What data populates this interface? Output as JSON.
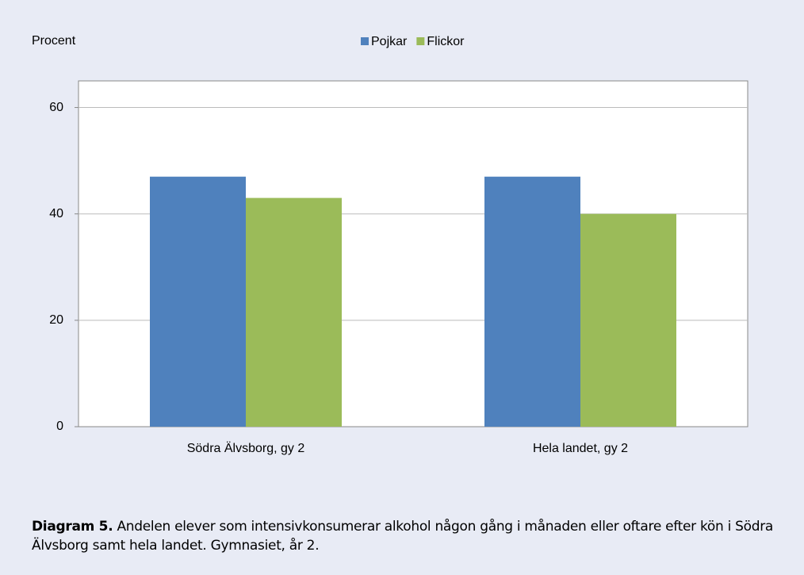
{
  "chart_data": {
    "type": "bar",
    "y_label": "Procent",
    "categories": [
      "Södra Älvsborg, gy 2",
      "Hela landet, gy 2"
    ],
    "series": [
      {
        "name": "Pojkar",
        "color": "#4f81bd",
        "values": [
          47,
          47
        ]
      },
      {
        "name": "Flickor",
        "color": "#9bbb59",
        "values": [
          43,
          40
        ]
      }
    ],
    "ylim": [
      0,
      65
    ],
    "yticks": [
      0,
      20,
      40,
      60
    ],
    "grid": true,
    "legend": "top",
    "caption": {
      "label": "Diagram 5.",
      "text": "Andelen elever som intensivkonsumerar alkohol någon gång i månaden eller oftare efter kön i Södra Älvsborg samt hela landet. Gymnasiet, år 2."
    }
  }
}
